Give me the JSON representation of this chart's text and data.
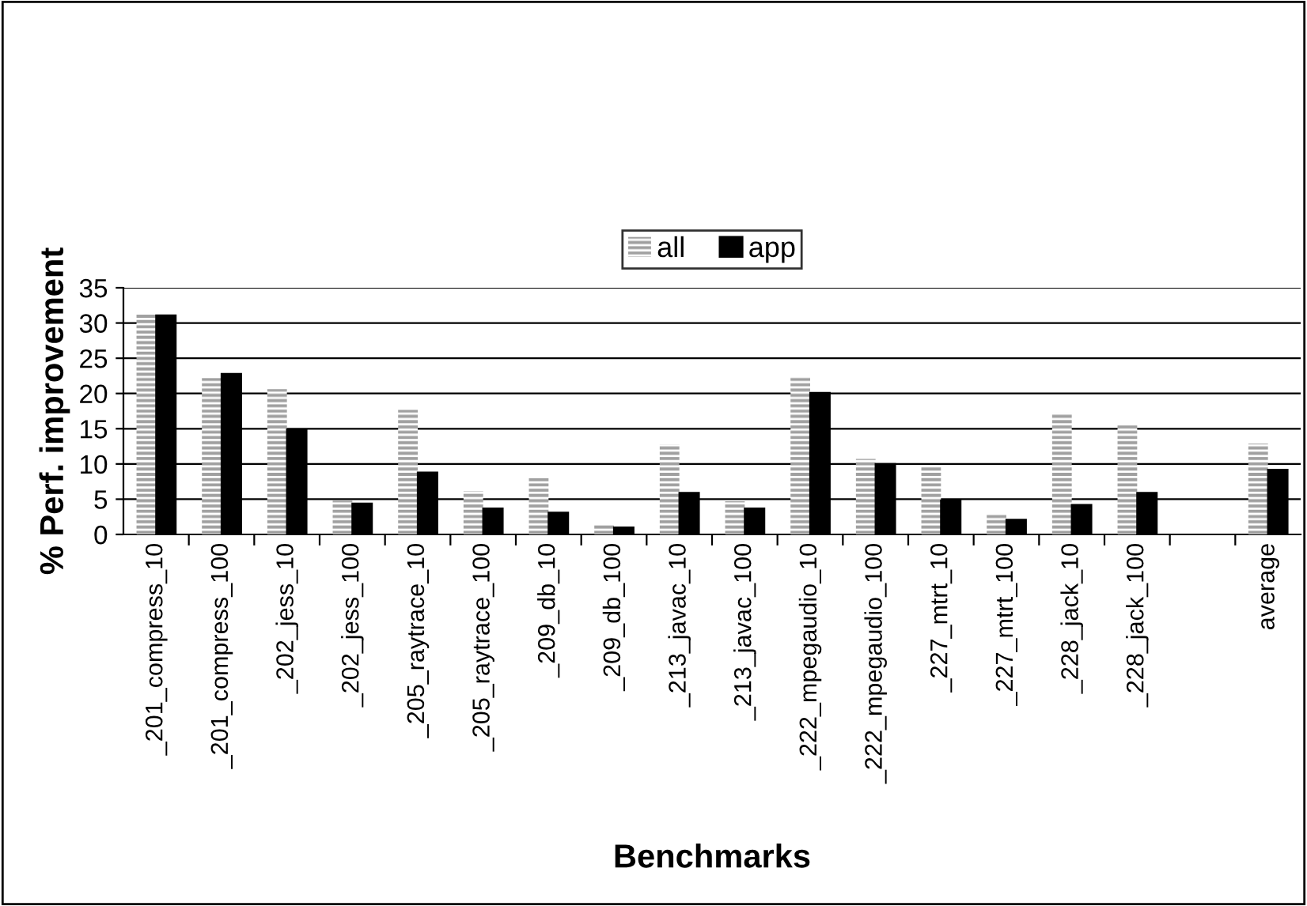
{
  "chart_data": {
    "type": "bar",
    "xlabel": "Benchmarks",
    "ylabel": "% Perf. improvement",
    "categories": [
      "_201_compress_10",
      "_201_compress_100",
      "_202_jess_10",
      "_202_jess_100",
      "_205_raytrace_10",
      "_205_raytrace_100",
      "_209_db_10",
      "_209_db_100",
      "_213_javac_10",
      "_213_javac_100",
      "_222_mpegaudio_10",
      "_222_mpegaudio_100",
      "_227_mtrt_10",
      "_227_mtrt_100",
      "_228_jack_10",
      "_228_jack_100",
      null,
      "average"
    ],
    "series": [
      {
        "name": "all",
        "color": "#a0a0a0",
        "values": [
          31.3,
          22.2,
          20.6,
          4.8,
          17.7,
          6.1,
          8.0,
          1.4,
          12.8,
          4.7,
          22.3,
          10.7,
          9.8,
          2.9,
          17.2,
          15.5,
          null,
          12.9
        ]
      },
      {
        "name": "app",
        "color": "#000000",
        "values": [
          31.1,
          22.8,
          14.9,
          4.4,
          8.8,
          3.7,
          3.1,
          1.0,
          5.9,
          3.7,
          20.1,
          10.0,
          4.8,
          2.1,
          4.2,
          5.9,
          null,
          9.2
        ]
      }
    ],
    "ylim": [
      0,
      35
    ],
    "yticks": [
      0,
      5,
      10,
      15,
      20,
      25,
      30,
      35
    ],
    "grid": "y",
    "legend": "top"
  }
}
